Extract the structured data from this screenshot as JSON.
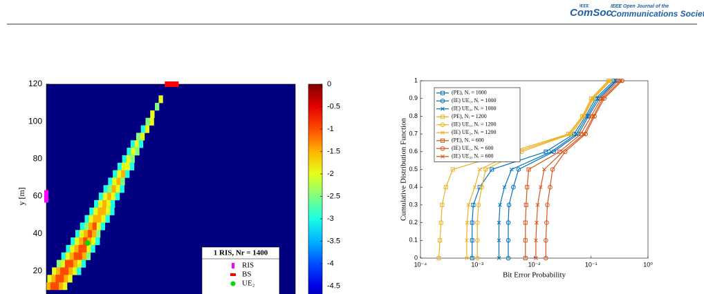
{
  "header": {
    "logo_top": "IEEE",
    "logo": "ComSoc",
    "journal_line1": "IEEE Open Journal of the",
    "journal_line2": "Communications Society"
  },
  "chart_data": [
    {
      "type": "heatmap",
      "ylabel": "y [m]",
      "xlim": [
        0,
        133
      ],
      "ylim": [
        0,
        120
      ],
      "yticks": [
        20,
        40,
        60,
        80,
        100,
        120
      ],
      "colormap": "jet",
      "clim": [
        -5,
        0
      ],
      "cticks": [
        0,
        -0.5,
        -1,
        -1.5,
        -2,
        -2.5,
        -3,
        -3.5,
        -4,
        -4.5
      ],
      "rows": [
        {
          "y": 112,
          "x": 60,
          "values": [
            -2
          ]
        },
        {
          "y": 108,
          "x": 58,
          "values": [
            -2.5
          ]
        },
        {
          "y": 104,
          "x": 55.5,
          "values": [
            -2
          ]
        },
        {
          "y": 100,
          "x": 53,
          "values": [
            -2.5,
            -2
          ]
        },
        {
          "y": 96,
          "x": 50.5,
          "values": [
            -3,
            -2
          ]
        },
        {
          "y": 92,
          "x": 48,
          "values": [
            -2.5,
            -2
          ]
        },
        {
          "y": 88,
          "x": 45,
          "values": [
            -3,
            -2,
            -3
          ]
        },
        {
          "y": 84,
          "x": 43,
          "values": [
            -3,
            -2,
            -2.5
          ]
        },
        {
          "y": 80,
          "x": 40.5,
          "values": [
            -3,
            -2,
            -2.5
          ]
        },
        {
          "y": 76,
          "x": 38,
          "values": [
            -3,
            -2,
            -2,
            -3
          ]
        },
        {
          "y": 72,
          "x": 35.5,
          "values": [
            -3,
            -2,
            -1.5,
            -3
          ]
        },
        {
          "y": 68,
          "x": 33,
          "values": [
            -3,
            -2,
            -1.5,
            -2.5
          ]
        },
        {
          "y": 64,
          "x": 30.5,
          "values": [
            -3,
            -2.5,
            -1.5,
            -2,
            -3
          ]
        },
        {
          "y": 60,
          "x": 28,
          "values": [
            -3,
            -2,
            -1.5,
            -2,
            -3
          ]
        },
        {
          "y": 56,
          "x": 25.5,
          "values": [
            -3,
            -2,
            -1.5,
            -2,
            -3
          ]
        },
        {
          "y": 52,
          "x": 23,
          "values": [
            -3,
            -2,
            -1.5,
            -1.5,
            -2,
            -3
          ]
        },
        {
          "y": 48,
          "x": 20.5,
          "values": [
            -3,
            -2,
            -1.5,
            -1.5,
            -2,
            -3
          ]
        },
        {
          "y": 44,
          "x": 18,
          "values": [
            -3,
            -2.5,
            -1.5,
            -1,
            -2,
            -3
          ]
        },
        {
          "y": 40,
          "x": 15.5,
          "values": [
            -3,
            -2,
            -1.5,
            -1,
            -1.5,
            -2.5
          ]
        },
        {
          "y": 36,
          "x": 13,
          "values": [
            -3,
            -2,
            -1.5,
            -1,
            -1.5,
            -2,
            -3
          ]
        },
        {
          "y": 32,
          "x": 10.5,
          "values": [
            -3,
            -2,
            -1.5,
            -1,
            -1,
            -2,
            -3
          ]
        },
        {
          "y": 28,
          "x": 8,
          "values": [
            -3,
            -2,
            -1.5,
            -1,
            -1,
            -1.5,
            -2.5
          ]
        },
        {
          "y": 24,
          "x": 5.5,
          "values": [
            -2.5,
            -2,
            -1,
            -1,
            -1.5,
            -2,
            -3
          ]
        },
        {
          "y": 20,
          "x": 3,
          "values": [
            -2,
            -1.5,
            -1,
            -1,
            -1.5,
            -2,
            -3
          ]
        },
        {
          "y": 16,
          "x": 0.5,
          "values": [
            -2,
            -1.5,
            -1,
            -1,
            -1.5,
            -2
          ]
        },
        {
          "y": 12,
          "x": 0,
          "values": [
            -1.5,
            -1,
            -1,
            -1.5,
            -2
          ]
        }
      ],
      "legend_title": "1 RIS, Nr = 1400",
      "markers": [
        {
          "name": "RIS",
          "color": "#ff00ff",
          "shape": "bar",
          "x": 0,
          "y": 60
        },
        {
          "name": "BS",
          "color": "#ff0000",
          "shape": "rect",
          "x": 67,
          "y": 120
        },
        {
          "name": "UE₂",
          "color": "#00dd00",
          "shape": "circle",
          "x": 22,
          "y": 35
        }
      ]
    },
    {
      "type": "line",
      "xlabel": "Bit Error Probability",
      "ylabel": "Cumulative Distribution Function",
      "xscale": "log",
      "xlim": [
        0.0001,
        1
      ],
      "xticks": [
        {
          "value": 0.0001,
          "label": "10⁻⁴"
        },
        {
          "value": 0.001,
          "label": "10⁻³"
        },
        {
          "value": 0.01,
          "label": "10⁻²"
        },
        {
          "value": 0.1,
          "label": "10⁻¹"
        },
        {
          "value": 1,
          "label": "10⁰"
        }
      ],
      "ylim": [
        0,
        1
      ],
      "yticks": [
        0,
        0.1,
        0.2,
        0.3,
        0.4,
        0.5,
        0.6,
        0.7,
        0.8,
        0.9,
        1
      ],
      "legend": "upper left",
      "series": [
        {
          "name": "(PE), Nᵣ = 1000",
          "color": "#0072bd",
          "marker": "square",
          "x": [
            0.00081,
            0.00081,
            0.00081,
            0.00085,
            0.0011,
            0.0018,
            0.016,
            0.05,
            0.08,
            0.12,
            0.25
          ],
          "values": [
            0,
            0.1,
            0.2,
            0.3,
            0.4,
            0.5,
            0.6,
            0.7,
            0.8,
            0.9,
            1
          ]
        },
        {
          "name": "(IE) UE₁, Nᵣ = 1000",
          "color": "#0072bd",
          "marker": "circle",
          "x": [
            0.0035,
            0.0035,
            0.0035,
            0.0036,
            0.0043,
            0.0053,
            0.022,
            0.06,
            0.09,
            0.14,
            0.28
          ],
          "values": [
            0,
            0.1,
            0.2,
            0.3,
            0.4,
            0.5,
            0.6,
            0.7,
            0.8,
            0.9,
            1
          ]
        },
        {
          "name": "(IE) UE₂, Nᵣ = 1000",
          "color": "#0072bd",
          "marker": "x",
          "x": [
            0.0024,
            0.0024,
            0.0024,
            0.0025,
            0.003,
            0.004,
            0.02,
            0.055,
            0.085,
            0.13,
            0.27
          ],
          "values": [
            0,
            0.1,
            0.2,
            0.3,
            0.4,
            0.5,
            0.6,
            0.7,
            0.8,
            0.9,
            1
          ]
        },
        {
          "name": "(PE), Nᵣ = 1200",
          "color": "#edb120",
          "marker": "square",
          "x": [
            0.00021,
            0.00022,
            0.00023,
            0.00024,
            0.00028,
            0.00037,
            0.004,
            0.04,
            0.07,
            0.1,
            0.2
          ],
          "values": [
            0,
            0.1,
            0.2,
            0.3,
            0.4,
            0.5,
            0.6,
            0.7,
            0.8,
            0.9,
            1
          ]
        },
        {
          "name": "(IE) UE₁, Nᵣ = 1200",
          "color": "#edb120",
          "marker": "circle",
          "x": [
            0.001,
            0.001,
            0.001,
            0.00105,
            0.0012,
            0.0014,
            0.006,
            0.045,
            0.075,
            0.11,
            0.22
          ],
          "values": [
            0,
            0.1,
            0.2,
            0.3,
            0.4,
            0.5,
            0.6,
            0.7,
            0.8,
            0.9,
            1
          ]
        },
        {
          "name": "(IE) UE₂, Nᵣ = 1200",
          "color": "#edb120",
          "marker": "x",
          "x": [
            0.00065,
            0.00065,
            0.00066,
            0.0007,
            0.0009,
            0.0011,
            0.005,
            0.042,
            0.072,
            0.105,
            0.21
          ],
          "values": [
            0,
            0.1,
            0.2,
            0.3,
            0.4,
            0.5,
            0.6,
            0.7,
            0.8,
            0.9,
            1
          ]
        },
        {
          "name": "(PE), Nᵣ = 600",
          "color": "#d95319",
          "marker": "square",
          "x": [
            0.007,
            0.007,
            0.007,
            0.0072,
            0.0075,
            0.008,
            0.028,
            0.066,
            0.1,
            0.15,
            0.3
          ],
          "values": [
            0,
            0.1,
            0.2,
            0.3,
            0.4,
            0.5,
            0.6,
            0.7,
            0.8,
            0.9,
            1
          ]
        },
        {
          "name": "(IE) UE₁, Nᵣ = 600",
          "color": "#d95319",
          "marker": "circle",
          "x": [
            0.016,
            0.016,
            0.0165,
            0.017,
            0.019,
            0.021,
            0.035,
            0.08,
            0.115,
            0.17,
            0.35
          ],
          "values": [
            0,
            0.1,
            0.2,
            0.3,
            0.4,
            0.5,
            0.6,
            0.7,
            0.8,
            0.9,
            1
          ]
        },
        {
          "name": "(IE) UE₂, Nᵣ = 600",
          "color": "#d95319",
          "marker": "x",
          "x": [
            0.0107,
            0.0107,
            0.011,
            0.0115,
            0.013,
            0.015,
            0.032,
            0.075,
            0.11,
            0.16,
            0.33
          ],
          "values": [
            0,
            0.1,
            0.2,
            0.3,
            0.4,
            0.5,
            0.6,
            0.7,
            0.8,
            0.9,
            1
          ]
        }
      ]
    }
  ]
}
